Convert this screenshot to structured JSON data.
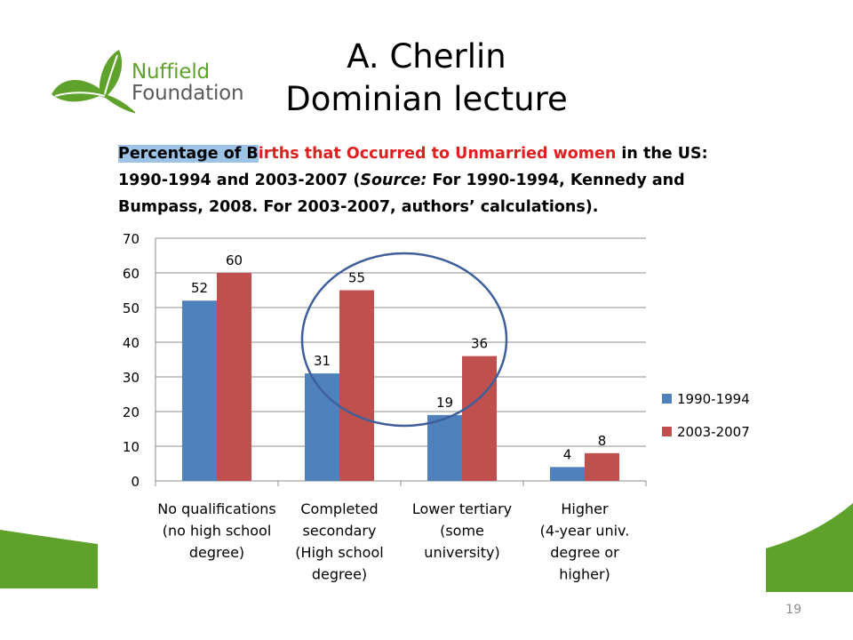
{
  "logo": {
    "line1": "Nuffield",
    "line2": "Foundation"
  },
  "title": {
    "line1": "A. Cherlin",
    "line2": "Dominian lecture"
  },
  "caption": {
    "part1": "Percentage of B",
    "part2": "irths that Occurred to Unmarried women",
    "part3": " in the US: 1990-1994 and 2003-2007 (",
    "source_label": "Source:",
    "part4": "  For 1990-1994, Kennedy and Bumpass, 2008. For 2003-2007, authors’ calculations)."
  },
  "slide_number": "19",
  "colors": {
    "series1": "#4f81bd",
    "series2": "#c0504d",
    "accent_green": "#5fa22b",
    "highlight": "#9dc3e6",
    "circle": "#3f5f9a"
  },
  "chart_data": {
    "type": "bar",
    "categories": [
      [
        "No qualifications",
        "(no high school",
        "degree)"
      ],
      [
        "Completed",
        "secondary",
        "(High school",
        "degree)"
      ],
      [
        "Lower tertiary",
        "(some",
        "university)"
      ],
      [
        "Higher",
        "(4-year univ.",
        "degree or",
        "higher)"
      ]
    ],
    "series": [
      {
        "name": "1990-1994",
        "values": [
          52,
          31,
          19,
          4
        ],
        "color": "#4f81bd"
      },
      {
        "name": "2003-2007",
        "values": [
          60,
          55,
          36,
          8
        ],
        "color": "#c0504d"
      }
    ],
    "ylim": [
      0,
      70
    ],
    "yticks": [
      0,
      10,
      20,
      30,
      40,
      50,
      60,
      70
    ],
    "grid": true,
    "legend": "right",
    "data_labels": true,
    "annotation": "circle around Completed secondary and Lower tertiary groups"
  }
}
